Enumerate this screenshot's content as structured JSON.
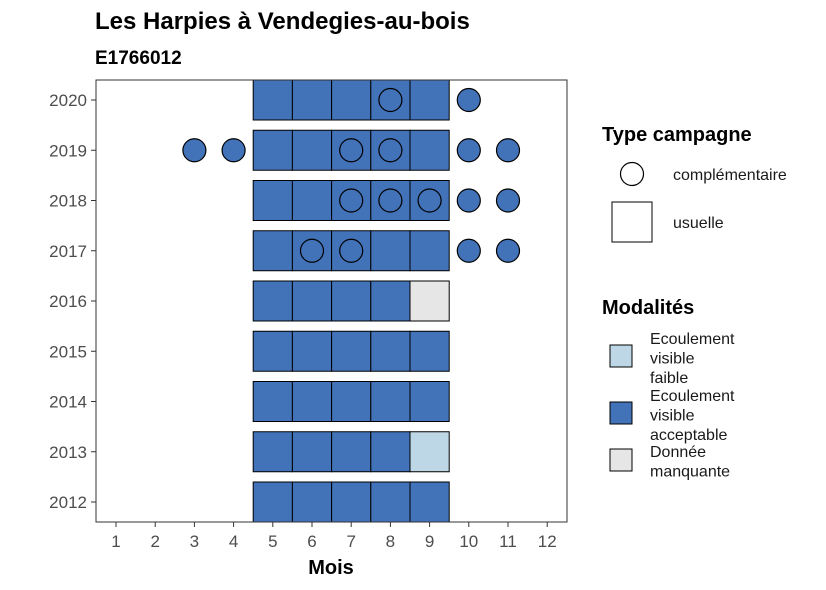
{
  "chart_data": {
    "type": "heatmap",
    "title": "Les Harpies à Vendegies-au-bois",
    "subtitle": "E1766012",
    "xlabel": "Mois",
    "ylabel": "",
    "x_ticks": [
      1,
      2,
      3,
      4,
      5,
      6,
      7,
      8,
      9,
      10,
      11,
      12
    ],
    "y_ticks": [
      2012,
      2013,
      2014,
      2015,
      2016,
      2017,
      2018,
      2019,
      2020
    ],
    "colors": {
      "faible": "#bdd7e7",
      "acceptable": "#4272b8",
      "manquante": "#e6e6e6",
      "border": "#000000"
    },
    "usuelle": [
      {
        "year": 2020,
        "month": 5,
        "modalite": "acceptable"
      },
      {
        "year": 2020,
        "month": 6,
        "modalite": "acceptable"
      },
      {
        "year": 2020,
        "month": 7,
        "modalite": "acceptable"
      },
      {
        "year": 2020,
        "month": 8,
        "modalite": "acceptable"
      },
      {
        "year": 2020,
        "month": 9,
        "modalite": "acceptable"
      },
      {
        "year": 2019,
        "month": 5,
        "modalite": "acceptable"
      },
      {
        "year": 2019,
        "month": 6,
        "modalite": "acceptable"
      },
      {
        "year": 2019,
        "month": 7,
        "modalite": "acceptable"
      },
      {
        "year": 2019,
        "month": 8,
        "modalite": "acceptable"
      },
      {
        "year": 2019,
        "month": 9,
        "modalite": "acceptable"
      },
      {
        "year": 2018,
        "month": 5,
        "modalite": "acceptable"
      },
      {
        "year": 2018,
        "month": 6,
        "modalite": "acceptable"
      },
      {
        "year": 2018,
        "month": 7,
        "modalite": "acceptable"
      },
      {
        "year": 2018,
        "month": 8,
        "modalite": "acceptable"
      },
      {
        "year": 2018,
        "month": 9,
        "modalite": "acceptable"
      },
      {
        "year": 2017,
        "month": 5,
        "modalite": "acceptable"
      },
      {
        "year": 2017,
        "month": 6,
        "modalite": "acceptable"
      },
      {
        "year": 2017,
        "month": 7,
        "modalite": "acceptable"
      },
      {
        "year": 2017,
        "month": 8,
        "modalite": "acceptable"
      },
      {
        "year": 2017,
        "month": 9,
        "modalite": "acceptable"
      },
      {
        "year": 2016,
        "month": 5,
        "modalite": "acceptable"
      },
      {
        "year": 2016,
        "month": 6,
        "modalite": "acceptable"
      },
      {
        "year": 2016,
        "month": 7,
        "modalite": "acceptable"
      },
      {
        "year": 2016,
        "month": 8,
        "modalite": "acceptable"
      },
      {
        "year": 2016,
        "month": 9,
        "modalite": "manquante"
      },
      {
        "year": 2015,
        "month": 5,
        "modalite": "acceptable"
      },
      {
        "year": 2015,
        "month": 6,
        "modalite": "acceptable"
      },
      {
        "year": 2015,
        "month": 7,
        "modalite": "acceptable"
      },
      {
        "year": 2015,
        "month": 8,
        "modalite": "acceptable"
      },
      {
        "year": 2015,
        "month": 9,
        "modalite": "acceptable"
      },
      {
        "year": 2014,
        "month": 5,
        "modalite": "acceptable"
      },
      {
        "year": 2014,
        "month": 6,
        "modalite": "acceptable"
      },
      {
        "year": 2014,
        "month": 7,
        "modalite": "acceptable"
      },
      {
        "year": 2014,
        "month": 8,
        "modalite": "acceptable"
      },
      {
        "year": 2014,
        "month": 9,
        "modalite": "acceptable"
      },
      {
        "year": 2013,
        "month": 5,
        "modalite": "acceptable"
      },
      {
        "year": 2013,
        "month": 6,
        "modalite": "acceptable"
      },
      {
        "year": 2013,
        "month": 7,
        "modalite": "acceptable"
      },
      {
        "year": 2013,
        "month": 8,
        "modalite": "acceptable"
      },
      {
        "year": 2013,
        "month": 9,
        "modalite": "faible"
      },
      {
        "year": 2012,
        "month": 5,
        "modalite": "acceptable"
      },
      {
        "year": 2012,
        "month": 6,
        "modalite": "acceptable"
      },
      {
        "year": 2012,
        "month": 7,
        "modalite": "acceptable"
      },
      {
        "year": 2012,
        "month": 8,
        "modalite": "acceptable"
      },
      {
        "year": 2012,
        "month": 9,
        "modalite": "acceptable"
      }
    ],
    "complementaire": [
      {
        "year": 2020,
        "month": 8,
        "modalite": "acceptable"
      },
      {
        "year": 2020,
        "month": 10,
        "modalite": "acceptable"
      },
      {
        "year": 2019,
        "month": 3,
        "modalite": "acceptable"
      },
      {
        "year": 2019,
        "month": 4,
        "modalite": "acceptable"
      },
      {
        "year": 2019,
        "month": 7,
        "modalite": "acceptable"
      },
      {
        "year": 2019,
        "month": 8,
        "modalite": "acceptable"
      },
      {
        "year": 2019,
        "month": 10,
        "modalite": "acceptable"
      },
      {
        "year": 2019,
        "month": 11,
        "modalite": "acceptable"
      },
      {
        "year": 2018,
        "month": 7,
        "modalite": "acceptable"
      },
      {
        "year": 2018,
        "month": 8,
        "modalite": "acceptable"
      },
      {
        "year": 2018,
        "month": 9,
        "modalite": "acceptable"
      },
      {
        "year": 2018,
        "month": 10,
        "modalite": "acceptable"
      },
      {
        "year": 2018,
        "month": 11,
        "modalite": "acceptable"
      },
      {
        "year": 2017,
        "month": 6,
        "modalite": "acceptable"
      },
      {
        "year": 2017,
        "month": 7,
        "modalite": "acceptable"
      },
      {
        "year": 2017,
        "month": 10,
        "modalite": "acceptable"
      },
      {
        "year": 2017,
        "month": 11,
        "modalite": "acceptable"
      }
    ],
    "legend": {
      "type_title": "Type campagne",
      "type_items": [
        {
          "key": "complementaire",
          "label": "complémentaire"
        },
        {
          "key": "usuelle",
          "label": "usuelle"
        }
      ],
      "modalite_title": "Modalités",
      "modalite_items": [
        {
          "key": "faible",
          "lines": [
            "Ecoulement",
            "visible",
            "faible"
          ]
        },
        {
          "key": "acceptable",
          "lines": [
            "Ecoulement",
            "visible",
            "acceptable"
          ]
        },
        {
          "key": "manquante",
          "lines": [
            "Donnée",
            "manquante"
          ]
        }
      ]
    }
  }
}
